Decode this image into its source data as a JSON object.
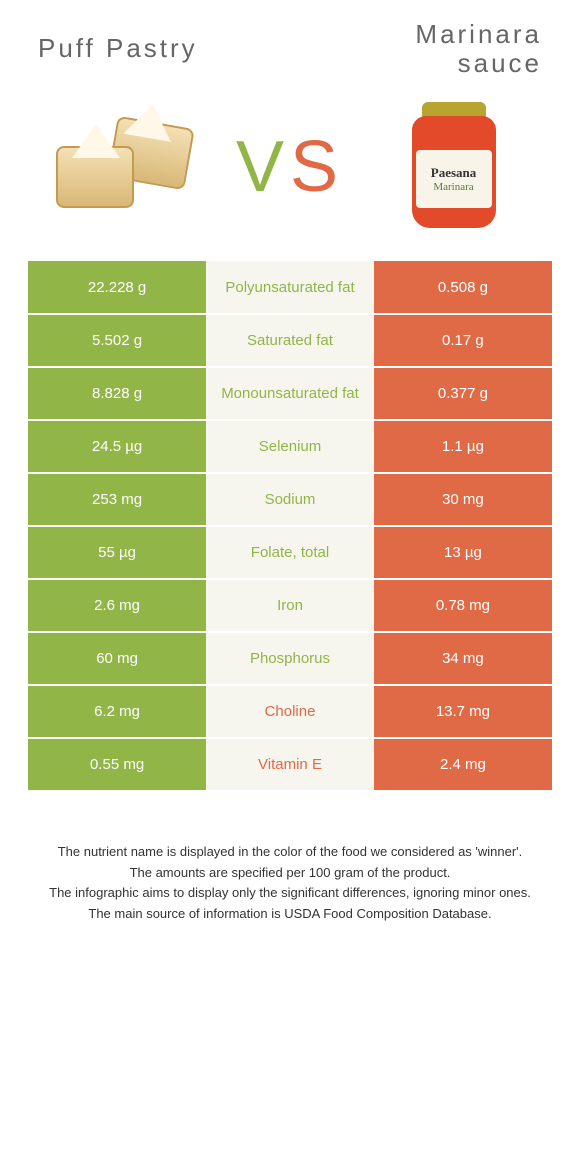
{
  "header": {
    "left_title": "Puff Pastry",
    "right_title": "Marinara\nsauce",
    "vs_v": "V",
    "vs_s": "S"
  },
  "jar": {
    "brand": "Paesana",
    "sub": "Marinara"
  },
  "colors": {
    "left_bg": "#92b548",
    "right_bg": "#e06a45",
    "mid_bg": "#f6f6ee",
    "left_text": "#92b548",
    "right_text": "#e06a45"
  },
  "rows": [
    {
      "left": "22.228 g",
      "label": "Polyunsaturated fat",
      "right": "0.508 g",
      "winner": "left"
    },
    {
      "left": "5.502 g",
      "label": "Saturated fat",
      "right": "0.17 g",
      "winner": "left"
    },
    {
      "left": "8.828 g",
      "label": "Monounsaturated fat",
      "right": "0.377 g",
      "winner": "left"
    },
    {
      "left": "24.5 µg",
      "label": "Selenium",
      "right": "1.1 µg",
      "winner": "left"
    },
    {
      "left": "253 mg",
      "label": "Sodium",
      "right": "30 mg",
      "winner": "left"
    },
    {
      "left": "55 µg",
      "label": "Folate, total",
      "right": "13 µg",
      "winner": "left"
    },
    {
      "left": "2.6 mg",
      "label": "Iron",
      "right": "0.78 mg",
      "winner": "left"
    },
    {
      "left": "60 mg",
      "label": "Phosphorus",
      "right": "34 mg",
      "winner": "left"
    },
    {
      "left": "6.2 mg",
      "label": "Choline",
      "right": "13.7 mg",
      "winner": "right"
    },
    {
      "left": "0.55 mg",
      "label": "Vitamin E",
      "right": "2.4 mg",
      "winner": "right"
    }
  ],
  "footer": {
    "line1": "The nutrient name is displayed in the color of the food we considered as 'winner'.",
    "line2": "The amounts are specified per 100 gram of the product.",
    "line3": "The infographic aims to display only the significant differences, ignoring minor ones.",
    "line4": "The main source of information is USDA Food Composition Database."
  }
}
